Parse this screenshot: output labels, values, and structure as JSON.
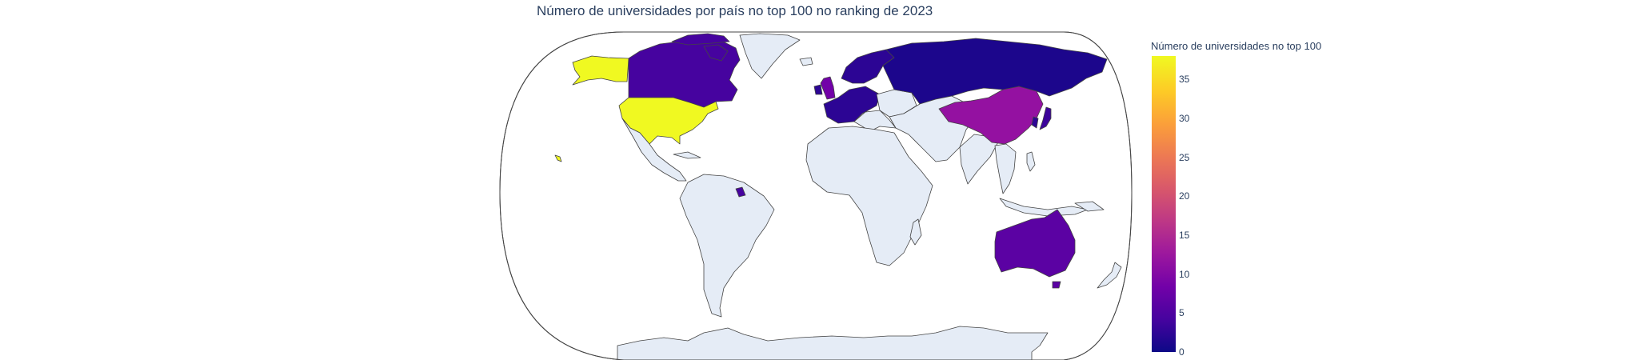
{
  "title": "Número de universidades por país no top 100 no ranking de 2023",
  "colorbar": {
    "title": "Número de universidades no top 100",
    "ticks": [
      "35",
      "30",
      "25",
      "20",
      "15",
      "10",
      "5",
      "0"
    ],
    "range": [
      0,
      38
    ],
    "colorscale": "plasma"
  },
  "colors": {
    "land": "#e5ecf6",
    "border": "#444444",
    "united_states": "#f0f921",
    "united_kingdom": "#7201a8",
    "china": "#9411a1",
    "australia": "#5b02a3",
    "canada": "#46039f",
    "japan": "#3b049a",
    "europe_low": "#2c0594",
    "russia": "#1c068c"
  },
  "regions": [
    {
      "name": "United States",
      "value": 38
    },
    {
      "name": "China",
      "value": 12
    },
    {
      "name": "United Kingdom",
      "value": 10
    },
    {
      "name": "Australia",
      "value": 7
    },
    {
      "name": "Canada",
      "value": 5
    },
    {
      "name": "Japan",
      "value": 4
    },
    {
      "name": "Russia",
      "value": 1
    }
  ]
}
